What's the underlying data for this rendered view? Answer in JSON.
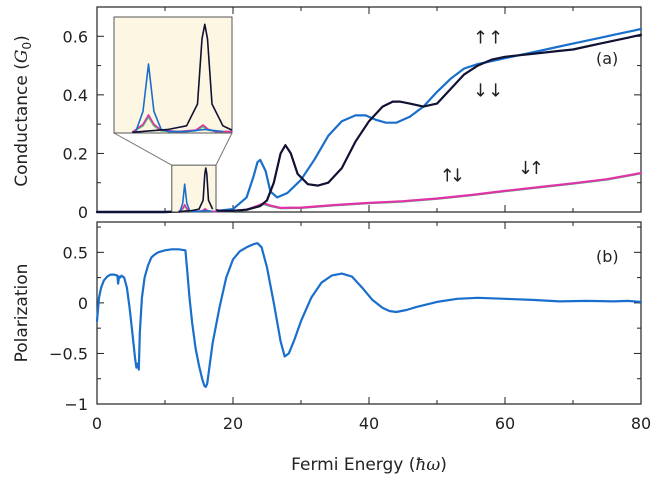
{
  "chart_data": [
    {
      "type": "line",
      "panel": "(a)",
      "ylabel": "Conductance (G0)",
      "ylabel_main": "Conductance (",
      "ylabel_symbol": "G",
      "ylabel_sub": "0",
      "ylabel_close": ")",
      "xlim": [
        0,
        80
      ],
      "ylim": [
        0,
        0.7
      ],
      "xticks": [
        0,
        20,
        40,
        60,
        80
      ],
      "yticks": [
        0,
        0.2,
        0.4,
        0.6
      ],
      "ytick_labels": [
        "0",
        "0.2",
        "0.4",
        "0.6"
      ],
      "grid": false,
      "annotations": [
        {
          "text": "↑↑",
          "x": 57.5,
          "y": 0.575,
          "color": "#222222"
        },
        {
          "text": "↓↓",
          "x": 57.5,
          "y": 0.395,
          "color": "#222222"
        },
        {
          "text": "↑",
          "x": 51.5,
          "y": 0.105,
          "color": "#222222"
        },
        {
          "text": "↓",
          "x": 53.0,
          "y": 0.105,
          "color": "#3cc46a"
        },
        {
          "text": "↓",
          "x": 63.0,
          "y": 0.13,
          "color": "#222222"
        },
        {
          "text": "↑",
          "x": 64.6,
          "y": 0.13,
          "color": "#e033a8"
        }
      ],
      "series": [
        {
          "color": "#1a6fcc",
          "x": [
            0,
            5,
            10,
            12.2,
            12.6,
            12.9,
            13.2,
            13.6,
            14,
            15,
            16,
            17,
            20,
            22,
            23,
            23.6,
            24,
            24.8,
            25.5,
            26.5,
            28,
            30,
            32,
            34,
            36,
            38,
            39.5,
            41,
            42.5,
            44,
            46,
            48,
            50,
            52,
            54,
            56,
            58,
            60,
            62,
            64,
            66,
            68,
            70,
            72,
            74,
            76,
            78,
            80
          ],
          "y": [
            0,
            0,
            0,
            0.002,
            0.03,
            0.095,
            0.03,
            0.005,
            0.002,
            0.002,
            0.005,
            0.002,
            0.01,
            0.05,
            0.12,
            0.17,
            0.178,
            0.14,
            0.07,
            0.05,
            0.065,
            0.11,
            0.18,
            0.26,
            0.31,
            0.33,
            0.33,
            0.315,
            0.305,
            0.305,
            0.325,
            0.36,
            0.41,
            0.455,
            0.49,
            0.505,
            0.515,
            0.525,
            0.535,
            0.545,
            0.555,
            0.565,
            0.575,
            0.585,
            0.595,
            0.605,
            0.615,
            0.625
          ]
        },
        {
          "color": "#111133",
          "x": [
            0,
            10,
            12,
            13,
            14,
            15,
            15.6,
            15.85,
            16,
            16.15,
            16.4,
            17,
            18,
            20,
            22,
            24,
            25,
            26,
            27,
            27.7,
            28.5,
            29.5,
            31,
            32.5,
            34,
            36,
            38,
            40,
            42,
            43.5,
            44.5,
            46,
            48,
            50,
            52,
            54,
            56,
            58,
            60,
            62,
            64,
            66,
            68,
            70,
            72,
            74,
            76,
            78,
            80
          ],
          "y": [
            0,
            0,
            0.001,
            0.003,
            0.005,
            0.01,
            0.04,
            0.13,
            0.15,
            0.13,
            0.04,
            0.01,
            0.004,
            0.004,
            0.008,
            0.02,
            0.04,
            0.1,
            0.2,
            0.228,
            0.2,
            0.13,
            0.095,
            0.09,
            0.1,
            0.15,
            0.24,
            0.31,
            0.36,
            0.377,
            0.377,
            0.37,
            0.36,
            0.37,
            0.42,
            0.47,
            0.5,
            0.52,
            0.53,
            0.535,
            0.54,
            0.545,
            0.55,
            0.555,
            0.565,
            0.575,
            0.585,
            0.595,
            0.605
          ]
        },
        {
          "color": "#e033a8",
          "x": [
            0,
            10,
            12,
            12.6,
            12.9,
            13.2,
            13.6,
            14.5,
            15.5,
            15.9,
            16.2,
            16.6,
            17.5,
            20,
            22,
            23.5,
            24.5,
            25.5,
            27,
            30,
            35,
            40,
            45,
            50,
            55,
            60,
            65,
            70,
            75,
            80
          ],
          "y": [
            0,
            0,
            0.001,
            0.012,
            0.025,
            0.012,
            0.004,
            0.002,
            0.004,
            0.011,
            0.005,
            0.002,
            0.002,
            0.004,
            0.008,
            0.02,
            0.03,
            0.022,
            0.014,
            0.015,
            0.024,
            0.031,
            0.037,
            0.046,
            0.058,
            0.072,
            0.085,
            0.098,
            0.112,
            0.133
          ]
        },
        {
          "color": "#3cc46a",
          "x": [
            0,
            10,
            12,
            12.6,
            12.9,
            13.2,
            13.6,
            14.5,
            15.5,
            15.9,
            16.2,
            16.6,
            17.5,
            20,
            22,
            23.5,
            24.5,
            25.5,
            27,
            30,
            35,
            40,
            45,
            50,
            55,
            60,
            65,
            70,
            75,
            80
          ],
          "y": [
            0,
            0,
            0.001,
            0.01,
            0.022,
            0.01,
            0.003,
            0.002,
            0.003,
            0.009,
            0.004,
            0.002,
            0.002,
            0.003,
            0.007,
            0.018,
            0.027,
            0.02,
            0.013,
            0.014,
            0.023,
            0.03,
            0.036,
            0.045,
            0.057,
            0.071,
            0.084,
            0.097,
            0.111,
            0.132
          ]
        }
      ],
      "inset": {
        "xlim": [
          11,
          17.5
        ],
        "ylim": [
          0,
          0.16
        ],
        "background": "#fdf6e3"
      }
    },
    {
      "type": "line",
      "panel": "(b)",
      "xlabel": "Fermi Energy (ħω)",
      "xlabel_main": "Fermi Energy (",
      "xlabel_symbol": "ħω",
      "xlabel_close": ")",
      "ylabel": "Polarization",
      "xlim": [
        0,
        80
      ],
      "ylim": [
        -1,
        0.8
      ],
      "xticks": [
        0,
        20,
        40,
        60,
        80
      ],
      "xtick_labels": [
        "0",
        "20",
        "40",
        "60",
        "80"
      ],
      "yticks": [
        -1,
        -0.5,
        0,
        0.5
      ],
      "ytick_labels": [
        "−1",
        "−0.5",
        "0",
        "0.5"
      ],
      "grid": false,
      "series": [
        {
          "color": "#1a6fcc",
          "x": [
            0,
            0.3,
            0.6,
            1,
            1.5,
            2,
            2.5,
            3,
            3.1,
            3.25,
            3.4,
            3.6,
            4,
            4.4,
            4.8,
            5.2,
            5.6,
            5.8,
            6,
            6.15,
            6.3,
            6.6,
            7,
            7.5,
            8,
            8.5,
            9,
            10,
            11,
            12,
            13,
            13.3,
            13.6,
            14,
            14.5,
            15,
            15.5,
            15.8,
            16,
            16.2,
            16.5,
            17,
            18,
            19,
            20,
            21,
            22,
            23,
            23.6,
            24.2,
            25,
            26,
            27,
            27.6,
            28.2,
            29,
            30,
            31.5,
            33,
            34.5,
            36,
            37.5,
            39,
            40.5,
            42,
            43,
            44,
            45.5,
            47,
            50,
            53,
            56,
            60,
            64,
            68,
            72,
            76,
            78,
            80
          ],
          "y": [
            -0.18,
            0.05,
            0.15,
            0.22,
            0.26,
            0.28,
            0.28,
            0.27,
            0.19,
            0.26,
            0.25,
            0.27,
            0.25,
            0.15,
            -0.05,
            -0.3,
            -0.55,
            -0.64,
            -0.6,
            -0.66,
            -0.3,
            0.05,
            0.25,
            0.37,
            0.45,
            0.48,
            0.5,
            0.52,
            0.53,
            0.53,
            0.52,
            0.3,
            0.05,
            -0.2,
            -0.45,
            -0.62,
            -0.76,
            -0.82,
            -0.83,
            -0.8,
            -0.65,
            -0.4,
            -0.05,
            0.25,
            0.43,
            0.51,
            0.55,
            0.58,
            0.59,
            0.55,
            0.35,
            0.0,
            -0.38,
            -0.53,
            -0.5,
            -0.37,
            -0.18,
            0.05,
            0.2,
            0.27,
            0.29,
            0.26,
            0.15,
            0.03,
            -0.05,
            -0.08,
            -0.09,
            -0.07,
            -0.04,
            0.01,
            0.04,
            0.05,
            0.04,
            0.03,
            0.015,
            0.02,
            0.015,
            0.02,
            0.01
          ]
        }
      ]
    }
  ]
}
